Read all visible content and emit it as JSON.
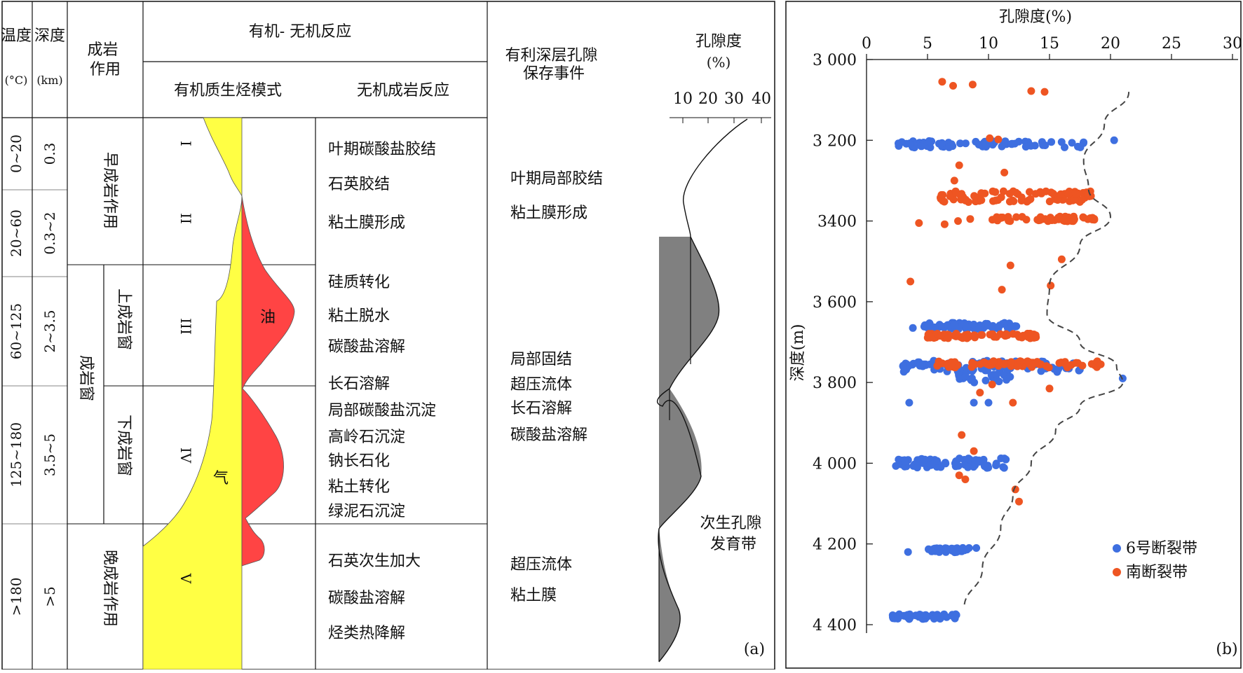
{
  "panel_a": {
    "headers": {
      "temperature": "温度",
      "temperature_unit": "(°C)",
      "depth": "深度",
      "depth_unit": "(km)",
      "diagenesis": "成岩作用",
      "org_inorg": "有机- 无机反应",
      "organic_mode": "有机质生烃模式",
      "inorganic": "无机成岩反应",
      "events": "有利深层孔隙保存事件",
      "porosity": "孔隙度",
      "porosity_unit": "(%)",
      "porosity_ticks": [
        "10",
        "20",
        "30",
        "40"
      ]
    },
    "temperature_ranges": [
      "0~20",
      "20~60",
      "60~125",
      "125~180",
      ">180"
    ],
    "depth_ranges": [
      "0.3",
      "0.3~2",
      "2~3.5",
      "3.5~5",
      ">5"
    ],
    "diagenesis_stages": {
      "early": "早成岩作用",
      "window": "成岩窗",
      "upper_window": "上成岩窗",
      "lower_window": "下成岩窗",
      "late": "晚成岩作用"
    },
    "roman_stages": [
      "I",
      "II",
      "III",
      "IV",
      "V"
    ],
    "oil_label": "油",
    "gas_label": "气",
    "inorganic_reactions": [
      "叶期碳酸盐胶结",
      "石英胶结",
      "粘土膜形成",
      "硅质转化",
      "粘土脱水",
      "碳酸盐溶解",
      "长石溶解",
      "局部碳酸盐沉淀",
      "高岭石沉淀",
      "钠长石化",
      "粘土转化",
      "绿泥石沉淀",
      "石英次生加大",
      "碳酸盐溶解",
      "烃类热降解"
    ],
    "preservation_events": [
      "叶期局部胶结",
      "粘土膜形成",
      "局部固结",
      "超压流体",
      "长石溶解",
      "碳酸盐溶解",
      "超压流体",
      "粘土膜"
    ],
    "secondary_pore_label_1": "次生孔隙",
    "secondary_pore_label_2": "发育带",
    "panel_label": "(a)",
    "colors": {
      "gas": "#ffff44",
      "oil": "#ff4444",
      "porosity_fill": "#808080"
    }
  },
  "panel_b": {
    "panel_label": "(b)",
    "chart_data": {
      "type": "scatter",
      "xlabel": "孔隙度(%)",
      "ylabel": "深度(m)",
      "xlim": [
        0,
        30
      ],
      "ylim": [
        3000,
        4400
      ],
      "y_inverted": true,
      "x_ticks": [
        "0",
        "5",
        "10",
        "15",
        "20",
        "25",
        "30"
      ],
      "y_ticks": [
        "3 000",
        "3 200",
        "3400",
        "3 600",
        "3 800",
        "4 000",
        "4 200",
        "4 400"
      ],
      "legend_position": "bottom-right",
      "series": [
        {
          "name": "6号断裂带",
          "color": "#3e6fe0",
          "clusters": [
            {
              "depth": 3210,
              "x_min": 2.5,
              "x_max": 18.5,
              "count": 70,
              "jitter": 8
            },
            {
              "depth": 3660,
              "x_min": 4.5,
              "x_max": 12.5,
              "count": 70,
              "jitter": 8
            },
            {
              "depth": 3760,
              "x_min": 3.0,
              "x_max": 18.0,
              "count": 85,
              "jitter": 14
            },
            {
              "depth": 3790,
              "x_min": 7.5,
              "x_max": 12.0,
              "count": 20,
              "jitter": 10
            },
            {
              "depth": 4000,
              "x_min": 2.0,
              "x_max": 11.5,
              "count": 70,
              "jitter": 12
            },
            {
              "depth": 4215,
              "x_min": 5.0,
              "x_max": 8.5,
              "count": 35,
              "jitter": 6
            },
            {
              "depth": 4380,
              "x_min": 2.0,
              "x_max": 7.5,
              "count": 50,
              "jitter": 6
            }
          ],
          "points": [
            {
              "x": 20.3,
              "y": 3200
            },
            {
              "x": 3.0,
              "y": 3760
            },
            {
              "x": 21.0,
              "y": 3790
            },
            {
              "x": 3.5,
              "y": 3850
            },
            {
              "x": 3.8,
              "y": 3665
            },
            {
              "x": 9.0,
              "y": 4210
            },
            {
              "x": 3.4,
              "y": 4220
            },
            {
              "x": 8.8,
              "y": 3850
            },
            {
              "x": 10.0,
              "y": 3850
            }
          ]
        },
        {
          "name": "南断裂带",
          "color": "#ee5522",
          "clusters": [
            {
              "depth": 3340,
              "x_min": 6.0,
              "x_max": 18.5,
              "count": 90,
              "jitter": 14
            },
            {
              "depth": 3395,
              "x_min": 10.0,
              "x_max": 18.8,
              "count": 55,
              "jitter": 6
            },
            {
              "depth": 3685,
              "x_min": 5.0,
              "x_max": 14.0,
              "count": 60,
              "jitter": 6
            },
            {
              "depth": 3755,
              "x_min": 5.0,
              "x_max": 19.0,
              "count": 80,
              "jitter": 8
            }
          ],
          "points": [
            {
              "x": 6.2,
              "y": 3055
            },
            {
              "x": 7.1,
              "y": 3065
            },
            {
              "x": 8.7,
              "y": 3062
            },
            {
              "x": 13.5,
              "y": 3078
            },
            {
              "x": 14.6,
              "y": 3080
            },
            {
              "x": 10.1,
              "y": 3195
            },
            {
              "x": 10.8,
              "y": 3198
            },
            {
              "x": 7.6,
              "y": 3262
            },
            {
              "x": 11.3,
              "y": 3280
            },
            {
              "x": 7.2,
              "y": 3300
            },
            {
              "x": 4.3,
              "y": 3405
            },
            {
              "x": 6.4,
              "y": 3408
            },
            {
              "x": 7.5,
              "y": 3400
            },
            {
              "x": 8.5,
              "y": 3395
            },
            {
              "x": 11.8,
              "y": 3510
            },
            {
              "x": 16.0,
              "y": 3495
            },
            {
              "x": 3.6,
              "y": 3550
            },
            {
              "x": 11.1,
              "y": 3570
            },
            {
              "x": 15.1,
              "y": 3560
            },
            {
              "x": 19.2,
              "y": 3755
            },
            {
              "x": 9.3,
              "y": 3825
            },
            {
              "x": 10.3,
              "y": 3805
            },
            {
              "x": 12.0,
              "y": 3850
            },
            {
              "x": 15.0,
              "y": 3815
            },
            {
              "x": 7.8,
              "y": 3930
            },
            {
              "x": 8.8,
              "y": 3970
            },
            {
              "x": 7.6,
              "y": 4030
            },
            {
              "x": 8.1,
              "y": 4040
            },
            {
              "x": 12.2,
              "y": 4065
            },
            {
              "x": 12.5,
              "y": 4095
            }
          ]
        }
      ],
      "trend_curve": [
        [
          21.5,
          3080
        ],
        [
          19.5,
          3160
        ],
        [
          17.8,
          3250
        ],
        [
          18.2,
          3320
        ],
        [
          20.0,
          3390
        ],
        [
          17.5,
          3460
        ],
        [
          15.0,
          3560
        ],
        [
          14.8,
          3630
        ],
        [
          17.5,
          3700
        ],
        [
          20.5,
          3760
        ],
        [
          21.0,
          3800
        ],
        [
          17.5,
          3860
        ],
        [
          15.5,
          3920
        ],
        [
          13.5,
          4000
        ],
        [
          12.0,
          4080
        ],
        [
          11.0,
          4160
        ],
        [
          9.5,
          4260
        ],
        [
          8.0,
          4360
        ]
      ]
    }
  }
}
